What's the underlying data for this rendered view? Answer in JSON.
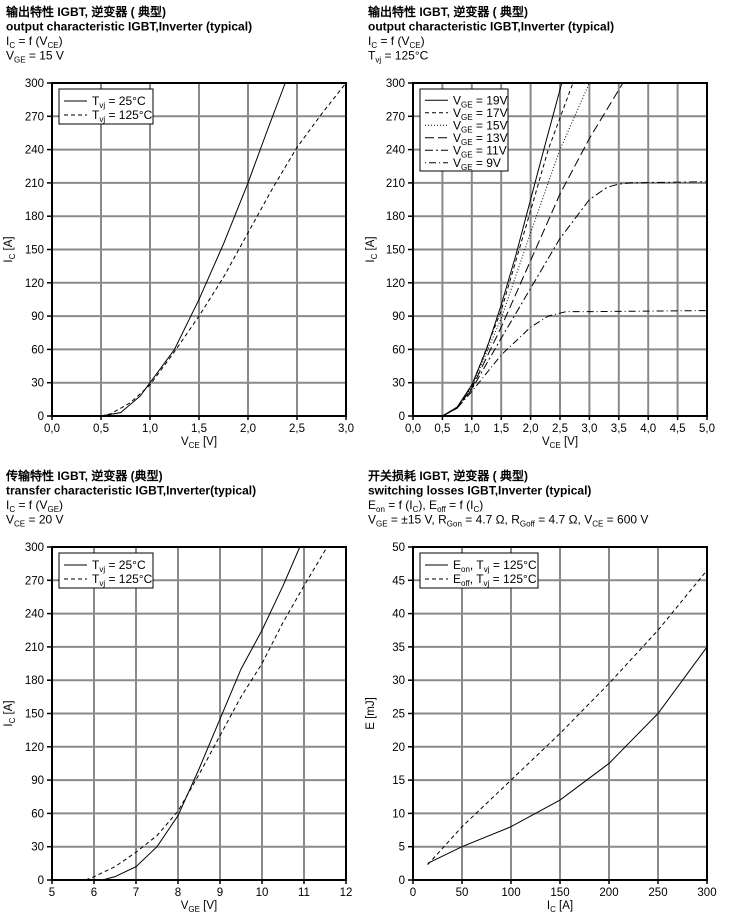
{
  "chart_data": [
    {
      "type": "line",
      "header": [
        [
          {
            "t": "输出特性 IGBT, 逆变器  ( 典型)"
          }
        ],
        [
          {
            "t": "output characteristic IGBT,Inverter (typical)"
          }
        ],
        [
          {
            "t": "I"
          },
          {
            "sub": "C"
          },
          {
            "t": " = f (V"
          },
          {
            "sub": "CE"
          },
          {
            "t": ")"
          }
        ],
        [
          {
            "t": "V"
          },
          {
            "sub": "GE"
          },
          {
            "t": " = 15 V"
          }
        ]
      ],
      "xlabel": [
        {
          "t": "V"
        },
        {
          "sub": "CE"
        },
        {
          "t": " [V]"
        }
      ],
      "ylabel": [
        {
          "t": "I"
        },
        {
          "sub": "C"
        },
        {
          "t": " [A]"
        }
      ],
      "xlim": [
        0,
        3
      ],
      "ylim": [
        0,
        300
      ],
      "x_ticks": [
        0,
        0.5,
        1,
        1.5,
        2,
        2.5,
        3
      ],
      "x_tick_labels": [
        "0,0",
        "0,5",
        "1,0",
        "1,5",
        "2,0",
        "2,5",
        "3,0"
      ],
      "y_ticks": [
        0,
        30,
        60,
        90,
        120,
        150,
        180,
        210,
        240,
        270,
        300
      ],
      "y_tick_labels": [
        "0",
        "30",
        "60",
        "90",
        "120",
        "150",
        "180",
        "210",
        "240",
        "270",
        "300"
      ],
      "grid": true,
      "legend_position": "top-left",
      "series": [
        {
          "name": [
            {
              "t": "T"
            },
            {
              "sub": "vj"
            },
            {
              "t": " = 25°C"
            }
          ],
          "style": "solid",
          "x": [
            0.5,
            0.7,
            0.9,
            1.0,
            1.25,
            1.5,
            1.75,
            2.0,
            2.2,
            2.38
          ],
          "y": [
            0,
            3,
            18,
            30,
            60,
            105,
            155,
            210,
            258,
            300
          ]
        },
        {
          "name": [
            {
              "t": "T"
            },
            {
              "sub": "vj"
            },
            {
              "t": " = 125°C"
            }
          ],
          "style": "dash",
          "x": [
            0.5,
            0.6,
            0.8,
            1.0,
            1.25,
            1.5,
            1.75,
            2.0,
            2.25,
            2.5,
            2.75,
            3.0
          ],
          "y": [
            0,
            2,
            12,
            28,
            58,
            90,
            125,
            165,
            205,
            242,
            272,
            300
          ]
        }
      ]
    },
    {
      "type": "line",
      "header": [
        [
          {
            "t": "输出特性 IGBT, 逆变器  ( 典型)"
          }
        ],
        [
          {
            "t": "output characteristic IGBT,Inverter (typical)"
          }
        ],
        [
          {
            "t": "I"
          },
          {
            "sub": "C"
          },
          {
            "t": " = f (V"
          },
          {
            "sub": "CE"
          },
          {
            "t": ")"
          }
        ],
        [
          {
            "t": "T"
          },
          {
            "sub": "vj"
          },
          {
            "t": " = 125°C"
          }
        ]
      ],
      "xlabel": [
        {
          "t": "V"
        },
        {
          "sub": "CE"
        },
        {
          "t": " [V]"
        }
      ],
      "ylabel": [
        {
          "t": "I"
        },
        {
          "sub": "C"
        },
        {
          "t": " [A]"
        }
      ],
      "xlim": [
        0,
        5
      ],
      "ylim": [
        0,
        300
      ],
      "x_ticks": [
        0,
        0.5,
        1,
        1.5,
        2,
        2.5,
        3,
        3.5,
        4,
        4.5,
        5
      ],
      "x_tick_labels": [
        "0,0",
        "0,5",
        "1,0",
        "1,5",
        "2,0",
        "2,5",
        "3,0",
        "3,5",
        "4,0",
        "4,5",
        "5,0"
      ],
      "y_ticks": [
        0,
        30,
        60,
        90,
        120,
        150,
        180,
        210,
        240,
        270,
        300
      ],
      "y_tick_labels": [
        "0",
        "30",
        "60",
        "90",
        "120",
        "150",
        "180",
        "210",
        "240",
        "270",
        "300"
      ],
      "grid": true,
      "legend_position": "top-left",
      "series": [
        {
          "name": [
            {
              "t": "V"
            },
            {
              "sub": "GE"
            },
            {
              "t": " = 19V"
            }
          ],
          "style": "solid",
          "x": [
            0.5,
            0.75,
            1,
            1.25,
            1.5,
            1.75,
            2,
            2.25,
            2.53
          ],
          "y": [
            0,
            8,
            28,
            60,
            100,
            145,
            195,
            245,
            300
          ]
        },
        {
          "name": [
            {
              "t": "V"
            },
            {
              "sub": "GE"
            },
            {
              "t": " = 17V"
            }
          ],
          "style": "dash",
          "x": [
            0.5,
            0.75,
            1,
            1.5,
            2,
            2.3,
            2.72
          ],
          "y": [
            0,
            8,
            27,
            95,
            185,
            240,
            300
          ]
        },
        {
          "name": [
            {
              "t": "V"
            },
            {
              "sub": "GE"
            },
            {
              "t": " = 15V"
            }
          ],
          "style": "dot",
          "x": [
            0.5,
            0.75,
            1,
            1.5,
            2,
            2.5,
            3.0
          ],
          "y": [
            0,
            8,
            26,
            88,
            165,
            240,
            300
          ]
        },
        {
          "name": [
            {
              "t": "V"
            },
            {
              "sub": "GE"
            },
            {
              "t": " = 13V"
            }
          ],
          "style": "longdash",
          "x": [
            0.5,
            0.75,
            1,
            1.5,
            2,
            2.5,
            3,
            3.57
          ],
          "y": [
            0,
            7,
            25,
            80,
            140,
            200,
            250,
            300
          ]
        },
        {
          "name": [
            {
              "t": "V"
            },
            {
              "sub": "GE"
            },
            {
              "t": " = 11V"
            }
          ],
          "style": "dashdot",
          "x": [
            0.5,
            0.75,
            1,
            1.5,
            2,
            2.5,
            3,
            3.3,
            3.5,
            3.7,
            5
          ],
          "y": [
            0,
            7,
            24,
            70,
            115,
            160,
            195,
            206,
            209,
            210,
            211
          ]
        },
        {
          "name": [
            {
              "t": "V"
            },
            {
              "sub": "GE"
            },
            {
              "t": " = 9V"
            }
          ],
          "style": "dotdash",
          "x": [
            0.5,
            0.75,
            1,
            1.5,
            2,
            2.3,
            2.6,
            3,
            5
          ],
          "y": [
            0,
            7,
            22,
            55,
            80,
            90,
            94,
            94,
            95
          ]
        }
      ]
    },
    {
      "type": "line",
      "header": [
        [
          {
            "t": "传输特性 IGBT, 逆变器 (典型)"
          }
        ],
        [
          {
            "t": "transfer characteristic  IGBT,Inverter(typical)"
          }
        ],
        [
          {
            "t": "I"
          },
          {
            "sub": "C"
          },
          {
            "t": " = f (V"
          },
          {
            "sub": "GE"
          },
          {
            "t": ")"
          }
        ],
        [
          {
            "t": "V"
          },
          {
            "sub": "CE"
          },
          {
            "t": " = 20 V"
          }
        ]
      ],
      "xlabel": [
        {
          "t": "V"
        },
        {
          "sub": "GE"
        },
        {
          "t": " [V]"
        }
      ],
      "ylabel": [
        {
          "t": "I"
        },
        {
          "sub": "C"
        },
        {
          "t": " [A]"
        }
      ],
      "xlim": [
        5,
        12
      ],
      "ylim": [
        0,
        300
      ],
      "x_ticks": [
        5,
        6,
        7,
        8,
        9,
        10,
        11,
        12
      ],
      "x_tick_labels": [
        "5",
        "6",
        "7",
        "8",
        "9",
        "10",
        "11",
        "12"
      ],
      "y_ticks": [
        0,
        30,
        60,
        90,
        120,
        150,
        180,
        210,
        240,
        270,
        300
      ],
      "y_tick_labels": [
        "0",
        "30",
        "60",
        "90",
        "120",
        "150",
        "180",
        "210",
        "240",
        "270",
        "300"
      ],
      "grid": true,
      "legend_position": "top-left",
      "series": [
        {
          "name": [
            {
              "t": "T"
            },
            {
              "sub": "vj"
            },
            {
              "t": " = 25°C"
            }
          ],
          "style": "solid",
          "x": [
            6.2,
            6.5,
            7,
            7.5,
            8,
            8.5,
            9,
            9.5,
            10,
            10.5,
            10.9
          ],
          "y": [
            0,
            3,
            12,
            30,
            58,
            100,
            145,
            190,
            225,
            265,
            300
          ]
        },
        {
          "name": [
            {
              "t": "T"
            },
            {
              "sub": "vj"
            },
            {
              "t": " = 125°C"
            }
          ],
          "style": "dash",
          "x": [
            5.8,
            6,
            6.5,
            7,
            7.5,
            8,
            8.5,
            9,
            9.5,
            10,
            10.5,
            11,
            11.55
          ],
          "y": [
            0,
            3,
            12,
            25,
            40,
            62,
            95,
            130,
            165,
            195,
            232,
            265,
            300
          ]
        }
      ]
    },
    {
      "type": "line",
      "header": [
        [
          {
            "t": "开关损耗 IGBT, 逆变器  ( 典型)"
          }
        ],
        [
          {
            "t": "switching losses  IGBT,Inverter (typical)"
          }
        ],
        [
          {
            "t": "E"
          },
          {
            "sub": "on"
          },
          {
            "t": " = f (I"
          },
          {
            "sub": "C"
          },
          {
            "t": "), E"
          },
          {
            "sub": "off"
          },
          {
            "t": " = f (I"
          },
          {
            "sub": "C"
          },
          {
            "t": ")"
          }
        ],
        [
          {
            "t": "V"
          },
          {
            "sub": "GE"
          },
          {
            "t": " = ±15 V, R"
          },
          {
            "sub": "Gon"
          },
          {
            "t": " = 4.7 Ω, R"
          },
          {
            "sub": "Goff"
          },
          {
            "t": " = 4.7 Ω, V"
          },
          {
            "sub": "CE"
          },
          {
            "t": " = 600 V"
          }
        ]
      ],
      "xlabel": [
        {
          "t": "I"
        },
        {
          "sub": "C"
        },
        {
          "t": " [A]"
        }
      ],
      "ylabel": [
        {
          "t": "E [mJ]"
        }
      ],
      "xlim": [
        0,
        300
      ],
      "ylim": [
        0,
        50
      ],
      "x_ticks": [
        0,
        50,
        100,
        150,
        200,
        250,
        300
      ],
      "x_tick_labels": [
        "0",
        "50",
        "100",
        "150",
        "200",
        "250",
        "300"
      ],
      "y_ticks": [
        0,
        5,
        10,
        15,
        20,
        25,
        30,
        35,
        40,
        45,
        50
      ],
      "y_tick_labels": [
        "0",
        "5",
        "10",
        "15",
        "20",
        "25",
        "30",
        "35",
        "40",
        "45",
        "50"
      ],
      "grid": true,
      "legend_position": "top-left",
      "series": [
        {
          "name": [
            {
              "t": "E"
            },
            {
              "sub": "on"
            },
            {
              "t": ", T"
            },
            {
              "sub": "vj"
            },
            {
              "t": " = 125°C"
            }
          ],
          "style": "solid",
          "x": [
            15,
            50,
            100,
            150,
            200,
            250,
            300
          ],
          "y": [
            2.5,
            5,
            8,
            12,
            17.5,
            25,
            35
          ]
        },
        {
          "name": [
            {
              "t": "E"
            },
            {
              "sub": "off"
            },
            {
              "t": ", T"
            },
            {
              "sub": "vj"
            },
            {
              "t": " = 125°C"
            }
          ],
          "style": "dash",
          "x": [
            15,
            50,
            100,
            150,
            200,
            250,
            300
          ],
          "y": [
            2.3,
            8,
            15,
            22,
            29.5,
            37.5,
            46.5
          ]
        }
      ]
    }
  ]
}
